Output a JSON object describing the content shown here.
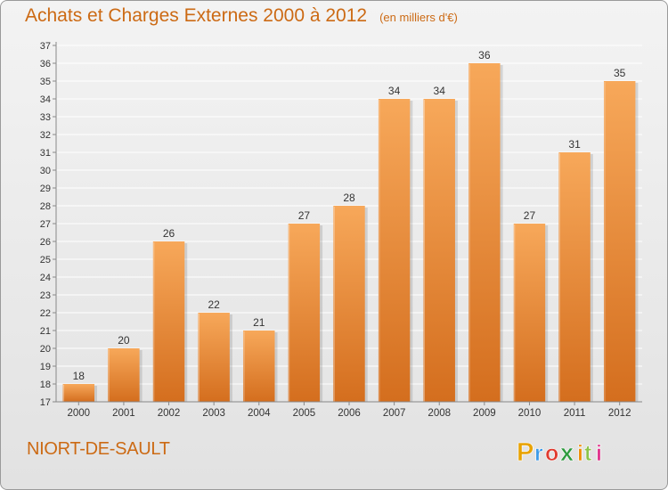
{
  "header": {
    "title": "Achats et Charges Externes 2000 à 2012",
    "subtitle": "(en milliers d'€)"
  },
  "footer": {
    "commune": "NIORT-DE-SAULT",
    "logo_text": "Proxiti"
  },
  "colors": {
    "accent": "#cc6a14",
    "bar_top": "#f7a85a",
    "bar_bottom": "#d46e1e",
    "grid": "#ffffff",
    "axis": "#888888",
    "logo_p": "#e8a200",
    "logo_r": "#3d9be9",
    "logo_o": "#e03a2e",
    "logo_x": "#2e9a3e",
    "logo_i1": "#f08a00",
    "logo_t": "#8bc34a",
    "logo_i2": "#e0318a"
  },
  "chart_data": {
    "type": "bar",
    "title": "Achats et Charges Externes 2000 à 2012",
    "subtitle": "(en milliers d'€)",
    "xlabel": "",
    "ylabel": "",
    "categories": [
      "2000",
      "2001",
      "2002",
      "2003",
      "2004",
      "2005",
      "2006",
      "2007",
      "2008",
      "2009",
      "2010",
      "2011",
      "2012"
    ],
    "values": [
      18,
      20,
      26,
      22,
      21,
      27,
      28,
      34,
      34,
      36,
      27,
      31,
      35
    ],
    "ylim": [
      17,
      37
    ],
    "yticks": [
      17,
      18,
      19,
      20,
      21,
      22,
      23,
      24,
      25,
      26,
      27,
      28,
      29,
      30,
      31,
      32,
      33,
      34,
      35,
      36,
      37
    ],
    "grid": true,
    "data_labels": true
  }
}
